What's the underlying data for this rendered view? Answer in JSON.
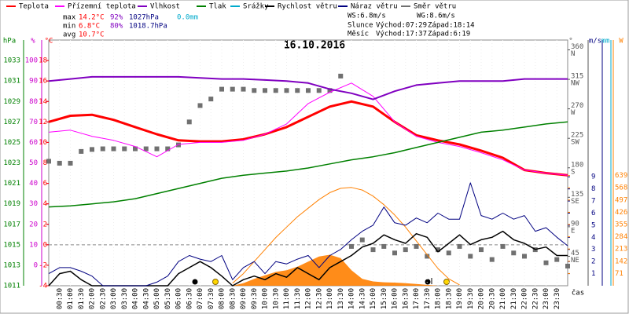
{
  "chart_data": {
    "type": "line",
    "title": "16.10.2016",
    "x_label": "čas",
    "xlim": [
      0,
      24
    ],
    "xticks": [
      {
        "value": 0.5,
        "label": "00:30"
      },
      {
        "value": 1,
        "label": "01:00"
      },
      {
        "value": 1.5,
        "label": "01:30"
      },
      {
        "value": 2,
        "label": "02:00"
      },
      {
        "value": 2.5,
        "label": "02:30"
      },
      {
        "value": 3,
        "label": "03:00"
      },
      {
        "value": 3.5,
        "label": "03:30"
      },
      {
        "value": 4,
        "label": "04:00"
      },
      {
        "value": 4.5,
        "label": "04:30"
      },
      {
        "value": 5,
        "label": "05:00"
      },
      {
        "value": 5.5,
        "label": "05:30"
      },
      {
        "value": 6,
        "label": "06:00"
      },
      {
        "value": 6.5,
        "label": "06:30"
      },
      {
        "value": 7,
        "label": "07:00"
      },
      {
        "value": 7.5,
        "label": "07:30"
      },
      {
        "value": 8,
        "label": "08:00"
      },
      {
        "value": 8.5,
        "label": "08:30"
      },
      {
        "value": 9,
        "label": "09:00"
      },
      {
        "value": 9.5,
        "label": "09:30"
      },
      {
        "value": 10,
        "label": "10:00"
      },
      {
        "value": 10.5,
        "label": "10:30"
      },
      {
        "value": 11,
        "label": "11:00"
      },
      {
        "value": 11.5,
        "label": "11:30"
      },
      {
        "value": 12,
        "label": "12:00"
      },
      {
        "value": 12.5,
        "label": "12:30"
      },
      {
        "value": 13,
        "label": "13:00"
      },
      {
        "value": 13.5,
        "label": "13:30"
      },
      {
        "value": 14,
        "label": "14:00"
      },
      {
        "value": 14.5,
        "label": "14:30"
      },
      {
        "value": 15,
        "label": "15:00"
      },
      {
        "value": 15.5,
        "label": "15:30"
      },
      {
        "value": 16,
        "label": "16:00"
      },
      {
        "value": 16.5,
        "label": "16:30"
      },
      {
        "value": 17,
        "label": "17:00"
      },
      {
        "value": 17.5,
        "label": "17:30"
      },
      {
        "value": 18,
        "label": "18:00"
      },
      {
        "value": 18.5,
        "label": "18:30"
      },
      {
        "value": 19,
        "label": "19:00"
      },
      {
        "value": 19.5,
        "label": "19:30"
      },
      {
        "value": 20,
        "label": "20:00"
      },
      {
        "value": 20.5,
        "label": "20:30"
      },
      {
        "value": 21,
        "label": "21:00"
      },
      {
        "value": 21.5,
        "label": "21:30"
      },
      {
        "value": 22,
        "label": "22:00"
      },
      {
        "value": 22.5,
        "label": "22:30"
      },
      {
        "value": 23,
        "label": "23:00"
      },
      {
        "value": 23.5,
        "label": "23:30"
      }
    ],
    "axes": [
      {
        "label": "hPa",
        "color": "#008000",
        "lim": [
          1011,
          1035
        ],
        "ticks": [
          1011,
          1013,
          1015,
          1017,
          1019,
          1021,
          1023,
          1025,
          1027,
          1029,
          1031,
          1033
        ]
      },
      {
        "label": "%",
        "color": "#cc00cc",
        "lim": [
          -10,
          110
        ],
        "ticks": [
          0,
          10,
          20,
          30,
          40,
          50,
          60,
          70,
          80,
          90,
          100
        ]
      },
      {
        "label": "°C",
        "color": "#ff0000",
        "lim": [
          -4,
          20
        ],
        "ticks": [
          -4,
          -2,
          0,
          2,
          4,
          6,
          8,
          10,
          12,
          14,
          16,
          18
        ],
        "zero_line": true
      },
      {
        "label": "°",
        "color": "#555555",
        "lim": [
          0,
          375
        ],
        "ticks": [
          45,
          90,
          135,
          180,
          225,
          270,
          315,
          360
        ],
        "tick_names": [
          "NE",
          "E",
          "SE",
          "S",
          "SW",
          "W",
          "NW",
          "N"
        ]
      },
      {
        "label": "m/s",
        "color": "#000080",
        "lim": [
          0,
          20.3
        ],
        "ticks": [
          1,
          2,
          3,
          4,
          5,
          6,
          7,
          8,
          9
        ]
      },
      {
        "label": "mm",
        "color": "#00aacc",
        "lim": [
          0,
          10
        ],
        "ticks": []
      },
      {
        "label": "W",
        "color": "#ff8000",
        "lim": [
          0,
          1425
        ],
        "ticks": [
          71,
          142,
          213,
          284,
          355,
          426,
          497,
          568,
          639
        ]
      }
    ],
    "series": [
      {
        "name": "Teplota",
        "color": "#ff0000",
        "type": "line",
        "axis": 2,
        "width": 3,
        "x": [
          0,
          1,
          2,
          3,
          4,
          5,
          6,
          7,
          8,
          9,
          10,
          11,
          12,
          13,
          14,
          15,
          16,
          17,
          18,
          19,
          20,
          21,
          22,
          23,
          24
        ],
        "values": [
          12,
          12.6,
          12.7,
          12.2,
          11.5,
          10.8,
          10.2,
          10.1,
          10.1,
          10.3,
          10.8,
          11.5,
          12.5,
          13.5,
          14.0,
          13.5,
          12,
          10.7,
          10.2,
          9.8,
          9.2,
          8.5,
          7.3,
          7.0,
          6.8
        ]
      },
      {
        "name": "Přízemní teplota",
        "color": "#ff00ff",
        "type": "line",
        "axis": 2,
        "width": 1,
        "x": [
          0,
          1,
          2,
          3,
          4,
          5,
          6,
          7,
          8,
          9,
          10,
          11,
          12,
          13,
          14,
          15,
          16,
          17,
          18,
          19,
          20,
          21,
          22,
          23,
          24
        ],
        "values": [
          11,
          11.2,
          10.6,
          10.2,
          9.6,
          8.6,
          9.8,
          10,
          10,
          10.2,
          10.8,
          11.8,
          13.8,
          14.9,
          15.8,
          14.5,
          12,
          10.6,
          10,
          9.6,
          9,
          8.3,
          7.3,
          7,
          6.8
        ]
      },
      {
        "name": "Vlhkost",
        "color": "#8000c0",
        "type": "line",
        "axis": 1,
        "width": 2,
        "x": [
          0,
          1,
          2,
          3,
          4,
          5,
          6,
          7,
          8,
          9,
          10,
          11,
          12,
          13,
          14,
          15,
          16,
          17,
          18,
          19,
          20,
          21,
          22,
          23,
          24
        ],
        "values": [
          90,
          91,
          92,
          92,
          92,
          92,
          92,
          91.5,
          91,
          91,
          90.5,
          90,
          89,
          86,
          84,
          81,
          85,
          88,
          89,
          90,
          90,
          90,
          91,
          91,
          91
        ]
      },
      {
        "name": "Tlak",
        "color": "#008000",
        "type": "line",
        "axis": 0,
        "width": 1.5,
        "x": [
          0,
          1,
          2,
          3,
          4,
          5,
          6,
          7,
          8,
          9,
          10,
          11,
          12,
          13,
          14,
          15,
          16,
          17,
          18,
          19,
          20,
          21,
          22,
          23,
          24
        ],
        "values": [
          1018.7,
          1018.8,
          1019,
          1019.2,
          1019.5,
          1020,
          1020.5,
          1021,
          1021.5,
          1021.8,
          1022,
          1022.2,
          1022.5,
          1022.9,
          1023.3,
          1023.6,
          1024,
          1024.5,
          1025,
          1025.5,
          1026,
          1026.2,
          1026.5,
          1026.8,
          1027
        ]
      },
      {
        "name": "Srážky",
        "color": "#00aacc",
        "type": "bar",
        "axis": 5,
        "x": [
          0,
          1,
          2,
          3,
          4,
          5,
          6,
          7,
          8,
          9,
          10,
          11,
          12,
          13,
          14,
          15,
          16,
          17,
          18,
          19,
          20,
          21,
          22,
          23,
          24
        ],
        "values": [
          0,
          0,
          0,
          0,
          0,
          0,
          0,
          0,
          0,
          0,
          0,
          0,
          0,
          0,
          0,
          0,
          0,
          0,
          0,
          0,
          0,
          0,
          0,
          0,
          0
        ]
      },
      {
        "color": "#ff8000",
        "type": "area",
        "axis": 6,
        "x": [
          0,
          0.5,
          1,
          1.5,
          2,
          2.5,
          3,
          3.5,
          4,
          4.5,
          5,
          5.5,
          6,
          6.5,
          7,
          7.5,
          8,
          8.5,
          9,
          9.5,
          10,
          10.5,
          11,
          11.5,
          12,
          12.5,
          13,
          13.5,
          14,
          14.5,
          15,
          15.5,
          16,
          16.5,
          17,
          17.5,
          18,
          18.5,
          19,
          19.5,
          20,
          20.5,
          21,
          21.5,
          22,
          22.5,
          23,
          23.5,
          24
        ],
        "values": [
          0,
          0,
          0,
          0,
          0,
          0,
          0,
          0,
          0,
          0,
          0,
          0,
          0,
          0,
          0,
          0,
          0,
          0,
          15,
          40,
          60,
          80,
          90,
          110,
          140,
          170,
          180,
          160,
          90,
          40,
          25,
          20,
          18,
          15,
          10,
          5,
          0,
          0,
          0,
          0,
          0,
          0,
          0,
          0,
          0,
          0,
          0,
          0,
          0
        ]
      },
      {
        "color": "#ff8000",
        "type": "line",
        "axis": 6,
        "width": 1,
        "x": [
          0,
          0.5,
          1,
          1.5,
          2,
          2.5,
          3,
          3.5,
          4,
          4.5,
          5,
          5.5,
          6,
          6.5,
          7,
          7.5,
          8,
          8.5,
          9,
          9.5,
          10,
          10.5,
          11,
          11.5,
          12,
          12.5,
          13,
          13.5,
          14,
          14.5,
          15,
          15.5,
          16,
          16.5,
          17,
          17.5,
          18,
          18.5,
          19,
          19.5,
          20,
          20.5,
          21,
          21.5,
          22,
          22.5,
          23,
          23.5,
          24
        ],
        "values": [
          null,
          null,
          null,
          null,
          null,
          null,
          null,
          null,
          null,
          null,
          null,
          null,
          null,
          null,
          null,
          null,
          null,
          15,
          70,
          140,
          210,
          280,
          340,
          400,
          450,
          500,
          540,
          565,
          570,
          555,
          520,
          470,
          410,
          340,
          260,
          180,
          100,
          40,
          5,
          null,
          null,
          null,
          null,
          null,
          null,
          null,
          null,
          null,
          null
        ]
      },
      {
        "name": "Rychlost větru",
        "color": "#000000",
        "type": "line",
        "axis": 4,
        "width": 1.5,
        "x": [
          0,
          0.5,
          1,
          1.5,
          2,
          2.5,
          3,
          3.5,
          4,
          4.5,
          5,
          5.5,
          6,
          6.5,
          7,
          7.5,
          8,
          8.5,
          9,
          9.5,
          10,
          10.5,
          11,
          11.5,
          12,
          12.5,
          13,
          13.5,
          14,
          14.5,
          15,
          15.5,
          16,
          16.5,
          17,
          17.5,
          18,
          18.5,
          19,
          19.5,
          20,
          20.5,
          21,
          21.5,
          22,
          22.5,
          23,
          23.5,
          24
        ],
        "values": [
          0,
          1.0,
          1.2,
          0.5,
          0,
          0,
          0,
          0,
          0,
          0,
          0,
          0,
          1,
          1.5,
          2,
          1.5,
          0.8,
          0,
          0.5,
          0.8,
          0.5,
          1.0,
          0.7,
          1.5,
          1.0,
          0.5,
          1.5,
          2,
          2.5,
          3.2,
          3.5,
          4.2,
          3.8,
          3.5,
          4.3,
          4,
          2.8,
          3.5,
          4.2,
          3.4,
          3.8,
          4,
          4.5,
          3.8,
          3.5,
          3.0,
          3.2,
          2.5,
          2.5
        ]
      },
      {
        "name": "Náraz větru",
        "color": "#000080",
        "type": "line",
        "axis": 4,
        "width": 1,
        "x": [
          0,
          0.5,
          1,
          1.5,
          2,
          2.5,
          3,
          3.5,
          4,
          4.5,
          5,
          5.5,
          6,
          6.5,
          7,
          7.5,
          8,
          8.5,
          9,
          9.5,
          10,
          10.5,
          11,
          11.5,
          12,
          12.5,
          13,
          13.5,
          14,
          14.5,
          15,
          15.5,
          16,
          16.5,
          17,
          17.5,
          18,
          18.5,
          19,
          19.5,
          20,
          20.5,
          21,
          21.5,
          22,
          22.5,
          23,
          23.5,
          24
        ],
        "values": [
          1,
          1.5,
          1.5,
          1.2,
          0.8,
          0,
          0,
          0,
          0,
          0,
          0.3,
          0.8,
          2,
          2.5,
          2.2,
          2,
          2.5,
          0.5,
          1.5,
          2,
          1,
          2,
          1.8,
          2.2,
          2.5,
          1.5,
          2.5,
          3,
          3.8,
          4.5,
          5,
          6.5,
          5.2,
          5,
          5.6,
          5.2,
          6,
          5.5,
          5.5,
          8.5,
          5.8,
          5.5,
          6,
          5.5,
          5.8,
          4.5,
          4.8,
          4,
          3.3
        ]
      },
      {
        "name": "Směr větru",
        "color": "#707070",
        "type": "scatter",
        "axis": 3,
        "x": [
          0,
          0.5,
          1,
          1.5,
          2,
          2.5,
          3,
          3.5,
          4,
          4.5,
          5,
          5.5,
          6,
          6.5,
          7,
          7.5,
          8,
          8.5,
          9,
          9.5,
          10,
          10.5,
          11,
          11.5,
          12,
          12.5,
          13,
          13.5,
          14,
          14.5,
          15,
          15.5,
          16,
          16.5,
          17,
          17.5,
          18,
          18.5,
          19,
          19.5,
          20,
          20.5,
          21,
          21.5,
          22,
          22.5,
          23,
          23.5,
          24
        ],
        "values": [
          190,
          187,
          187,
          205,
          208,
          209,
          209,
          209,
          209,
          209,
          209,
          209,
          215,
          250,
          275,
          285,
          300,
          300,
          300,
          298,
          298,
          298,
          298,
          298,
          298,
          298,
          298,
          320,
          60,
          70,
          55,
          60,
          50,
          55,
          60,
          45,
          55,
          50,
          60,
          45,
          55,
          40,
          60,
          50,
          45,
          55,
          35,
          40,
          30
        ]
      }
    ],
    "stats_rows": [
      [
        "max",
        "14.2°C",
        "92%",
        "1027hPa",
        "0.0mm"
      ],
      [
        "min",
        "6.8°C",
        "80%",
        "1018.7hPa"
      ],
      [
        "avg",
        "10.7°C"
      ]
    ],
    "info": {
      "ws": "WS:6.8m/s",
      "wg": "WG:8.6m/s",
      "sun": "Slunce",
      "sun_rise": "Východ:07:29",
      "sun_set": "Západ:18:14",
      "moon": "Měsíc",
      "moon_rise": "Východ:17:37",
      "moon_set": "Západ:6:19"
    }
  }
}
